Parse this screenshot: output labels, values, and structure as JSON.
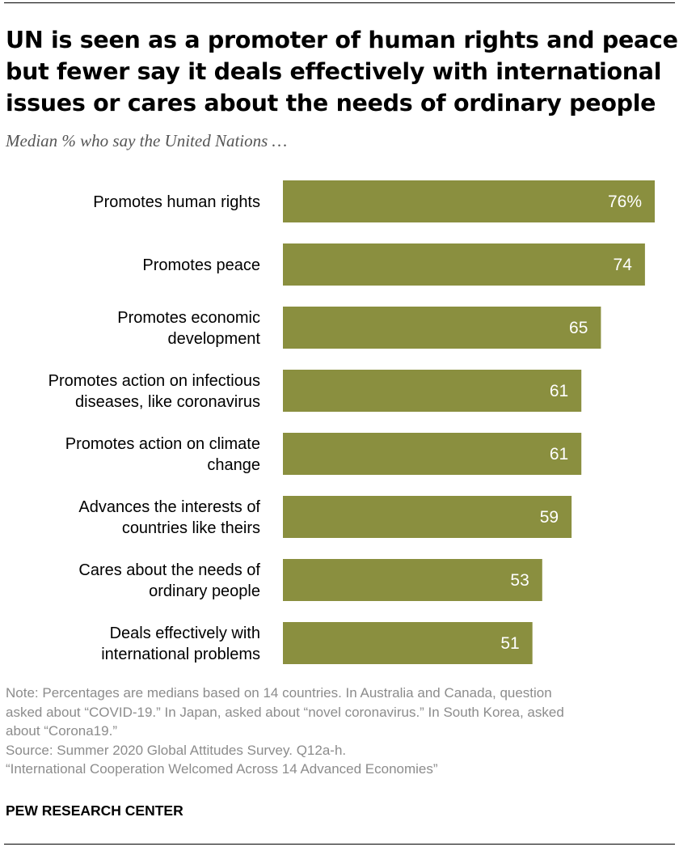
{
  "title_lines": [
    "UN is seen as a promoter of human rights and peace,",
    "but fewer say it deals effectively with international",
    "issues or cares about the needs of ordinary people"
  ],
  "subtitle": "Median % who say the United Nations …",
  "chart_data": {
    "type": "bar",
    "orientation": "horizontal",
    "categories": [
      [
        "Promotes human rights"
      ],
      [
        "Promotes peace"
      ],
      [
        "Promotes economic",
        "development"
      ],
      [
        "Promotes action on infectious",
        "diseases, like coronavirus"
      ],
      [
        "Promotes action on climate",
        "change"
      ],
      [
        "Advances the interests of",
        "countries like theirs"
      ],
      [
        "Cares about the needs of",
        "ordinary people"
      ],
      [
        "Deals effectively with",
        "international problems"
      ]
    ],
    "values": [
      76,
      74,
      65,
      61,
      61,
      59,
      53,
      51
    ],
    "value_labels": [
      "76%",
      "74",
      "65",
      "61",
      "61",
      "59",
      "53",
      "51"
    ],
    "xlim": [
      0,
      76
    ],
    "bar_color": "#8a8f3f",
    "grid": false,
    "legend": "none"
  },
  "notes": [
    "Note: Percentages are medians based on 14 countries. In Australia and Canada, question",
    "asked about “COVID-19.” In Japan, asked about “novel coronavirus.” In South Korea, asked",
    "about “Corona19.”",
    "Source: Summer 2020 Global Attitudes Survey. Q12a-h.",
    "“International Cooperation Welcomed Across 14 Advanced Economies”"
  ],
  "brand": "PEW RESEARCH CENTER",
  "colors": {
    "bar": "#8a8f3f",
    "note_text": "#8c8c8c",
    "subtitle_text": "#555555"
  }
}
